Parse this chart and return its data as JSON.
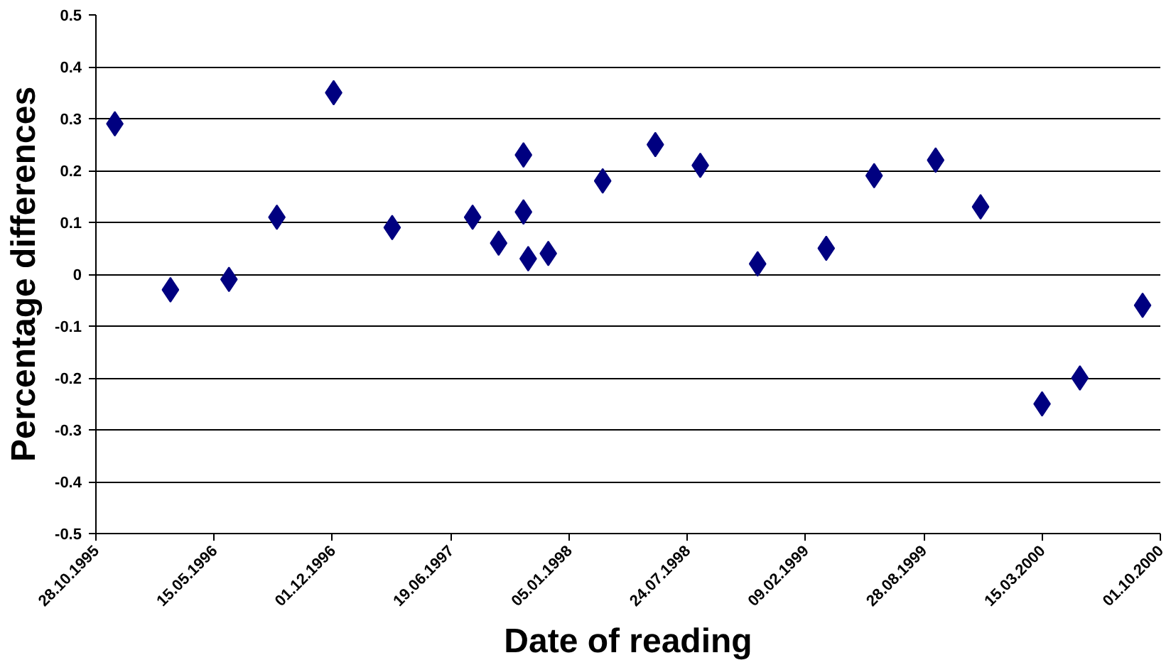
{
  "chart_data": {
    "type": "scatter",
    "xlabel": "Date of reading",
    "ylabel": "Percentage differences",
    "x": [
      "1995-11-29",
      "1996-03-02",
      "1996-06-09",
      "1996-08-29",
      "1996-12-03",
      "1997-03-12",
      "1997-07-26",
      "1997-09-08",
      "1997-10-20",
      "1997-10-20",
      "1997-10-28",
      "1997-12-01",
      "1998-03-03",
      "1998-05-31",
      "1998-08-15",
      "1998-11-20",
      "1999-03-16",
      "1999-06-05",
      "1999-09-17",
      "1999-12-02",
      "2000-03-15",
      "2000-05-18",
      "2000-09-01"
    ],
    "series": [
      {
        "color": "#000080",
        "values": [
          0.29,
          -0.03,
          -0.01,
          0.11,
          0.35,
          0.09,
          0.11,
          0.06,
          0.23,
          0.12,
          0.03,
          0.04,
          0.18,
          0.25,
          0.21,
          0.02,
          0.05,
          0.19,
          0.22,
          0.13,
          -0.25,
          -0.2,
          -0.06
        ]
      }
    ],
    "marker": "diamond",
    "grid": "y",
    "xlim": [
      "1995-10-28",
      "2000-10-01"
    ],
    "xticks": [
      {
        "value": "1995-10-28",
        "label": "28.10.1995"
      },
      {
        "value": "1996-05-15",
        "label": "15.05.1996"
      },
      {
        "value": "1996-12-01",
        "label": "01.12.1996"
      },
      {
        "value": "1997-06-19",
        "label": "19.06.1997"
      },
      {
        "value": "1998-01-05",
        "label": "05.01.1998"
      },
      {
        "value": "1998-07-24",
        "label": "24.07.1998"
      },
      {
        "value": "1999-02-09",
        "label": "09.02.1999"
      },
      {
        "value": "1999-08-28",
        "label": "28.08.1999"
      },
      {
        "value": "2000-03-15",
        "label": "15.03.2000"
      },
      {
        "value": "2000-10-01",
        "label": "01.10.2000"
      }
    ],
    "ylim": [
      -0.5,
      0.5
    ],
    "yticks": [
      0.5,
      0.4,
      0.3,
      0.2,
      0.1,
      {
        "value": 0,
        "label": "0"
      },
      -0.1,
      -0.2,
      -0.3,
      -0.4,
      -0.5
    ]
  }
}
